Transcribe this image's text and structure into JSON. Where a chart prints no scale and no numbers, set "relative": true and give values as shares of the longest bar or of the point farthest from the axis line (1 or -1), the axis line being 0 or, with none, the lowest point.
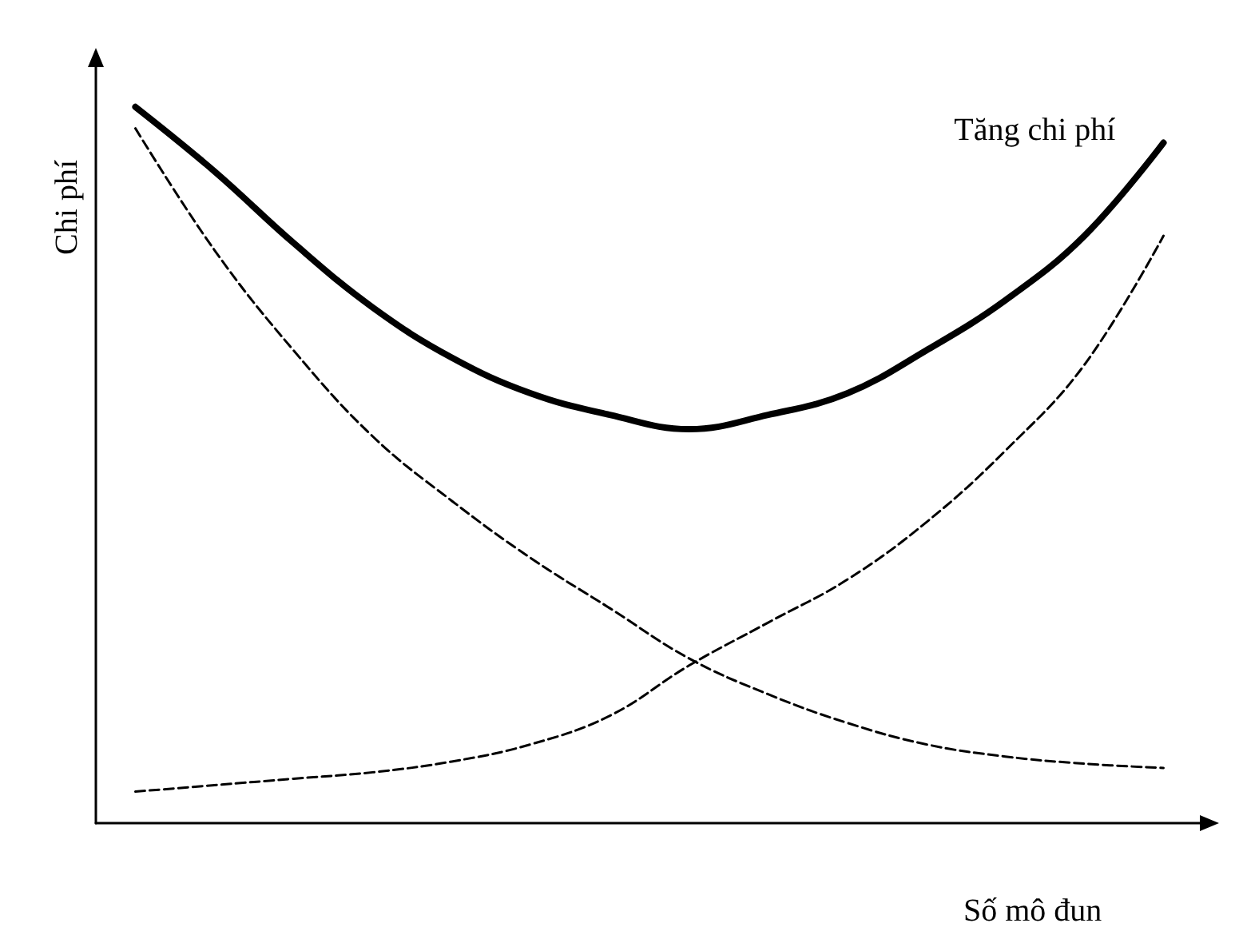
{
  "chart_data": {
    "type": "line",
    "relative": true,
    "xlabel": "Số mô đun",
    "ylabel": "Chi phí",
    "legend": false,
    "grid": false,
    "marker": "none",
    "categories": [
      null,
      null,
      null,
      null,
      null,
      null,
      null,
      null,
      null,
      null,
      null,
      null,
      null,
      null
    ],
    "series": [
      {
        "name": "Tăng chi phí",
        "color": "#000000",
        "line_style": "solid",
        "values": [
          1.0,
          0.91,
          0.81,
          0.72,
          0.65,
          0.6,
          0.57,
          0.55,
          0.57,
          0.6,
          0.66,
          0.73,
          0.82,
          0.95
        ]
      },
      {
        "color": "#000000",
        "line_style": "dashed",
        "values": [
          0.97,
          0.8,
          0.66,
          0.54,
          0.45,
          0.37,
          0.3,
          0.23,
          0.18,
          0.14,
          0.11,
          0.093,
          0.083,
          0.077
        ]
      },
      {
        "color": "#000000",
        "line_style": "dashed",
        "values": [
          0.044,
          0.053,
          0.062,
          0.071,
          0.086,
          0.11,
          0.15,
          0.22,
          0.28,
          0.34,
          0.42,
          0.52,
          0.64,
          0.82
        ]
      }
    ]
  }
}
